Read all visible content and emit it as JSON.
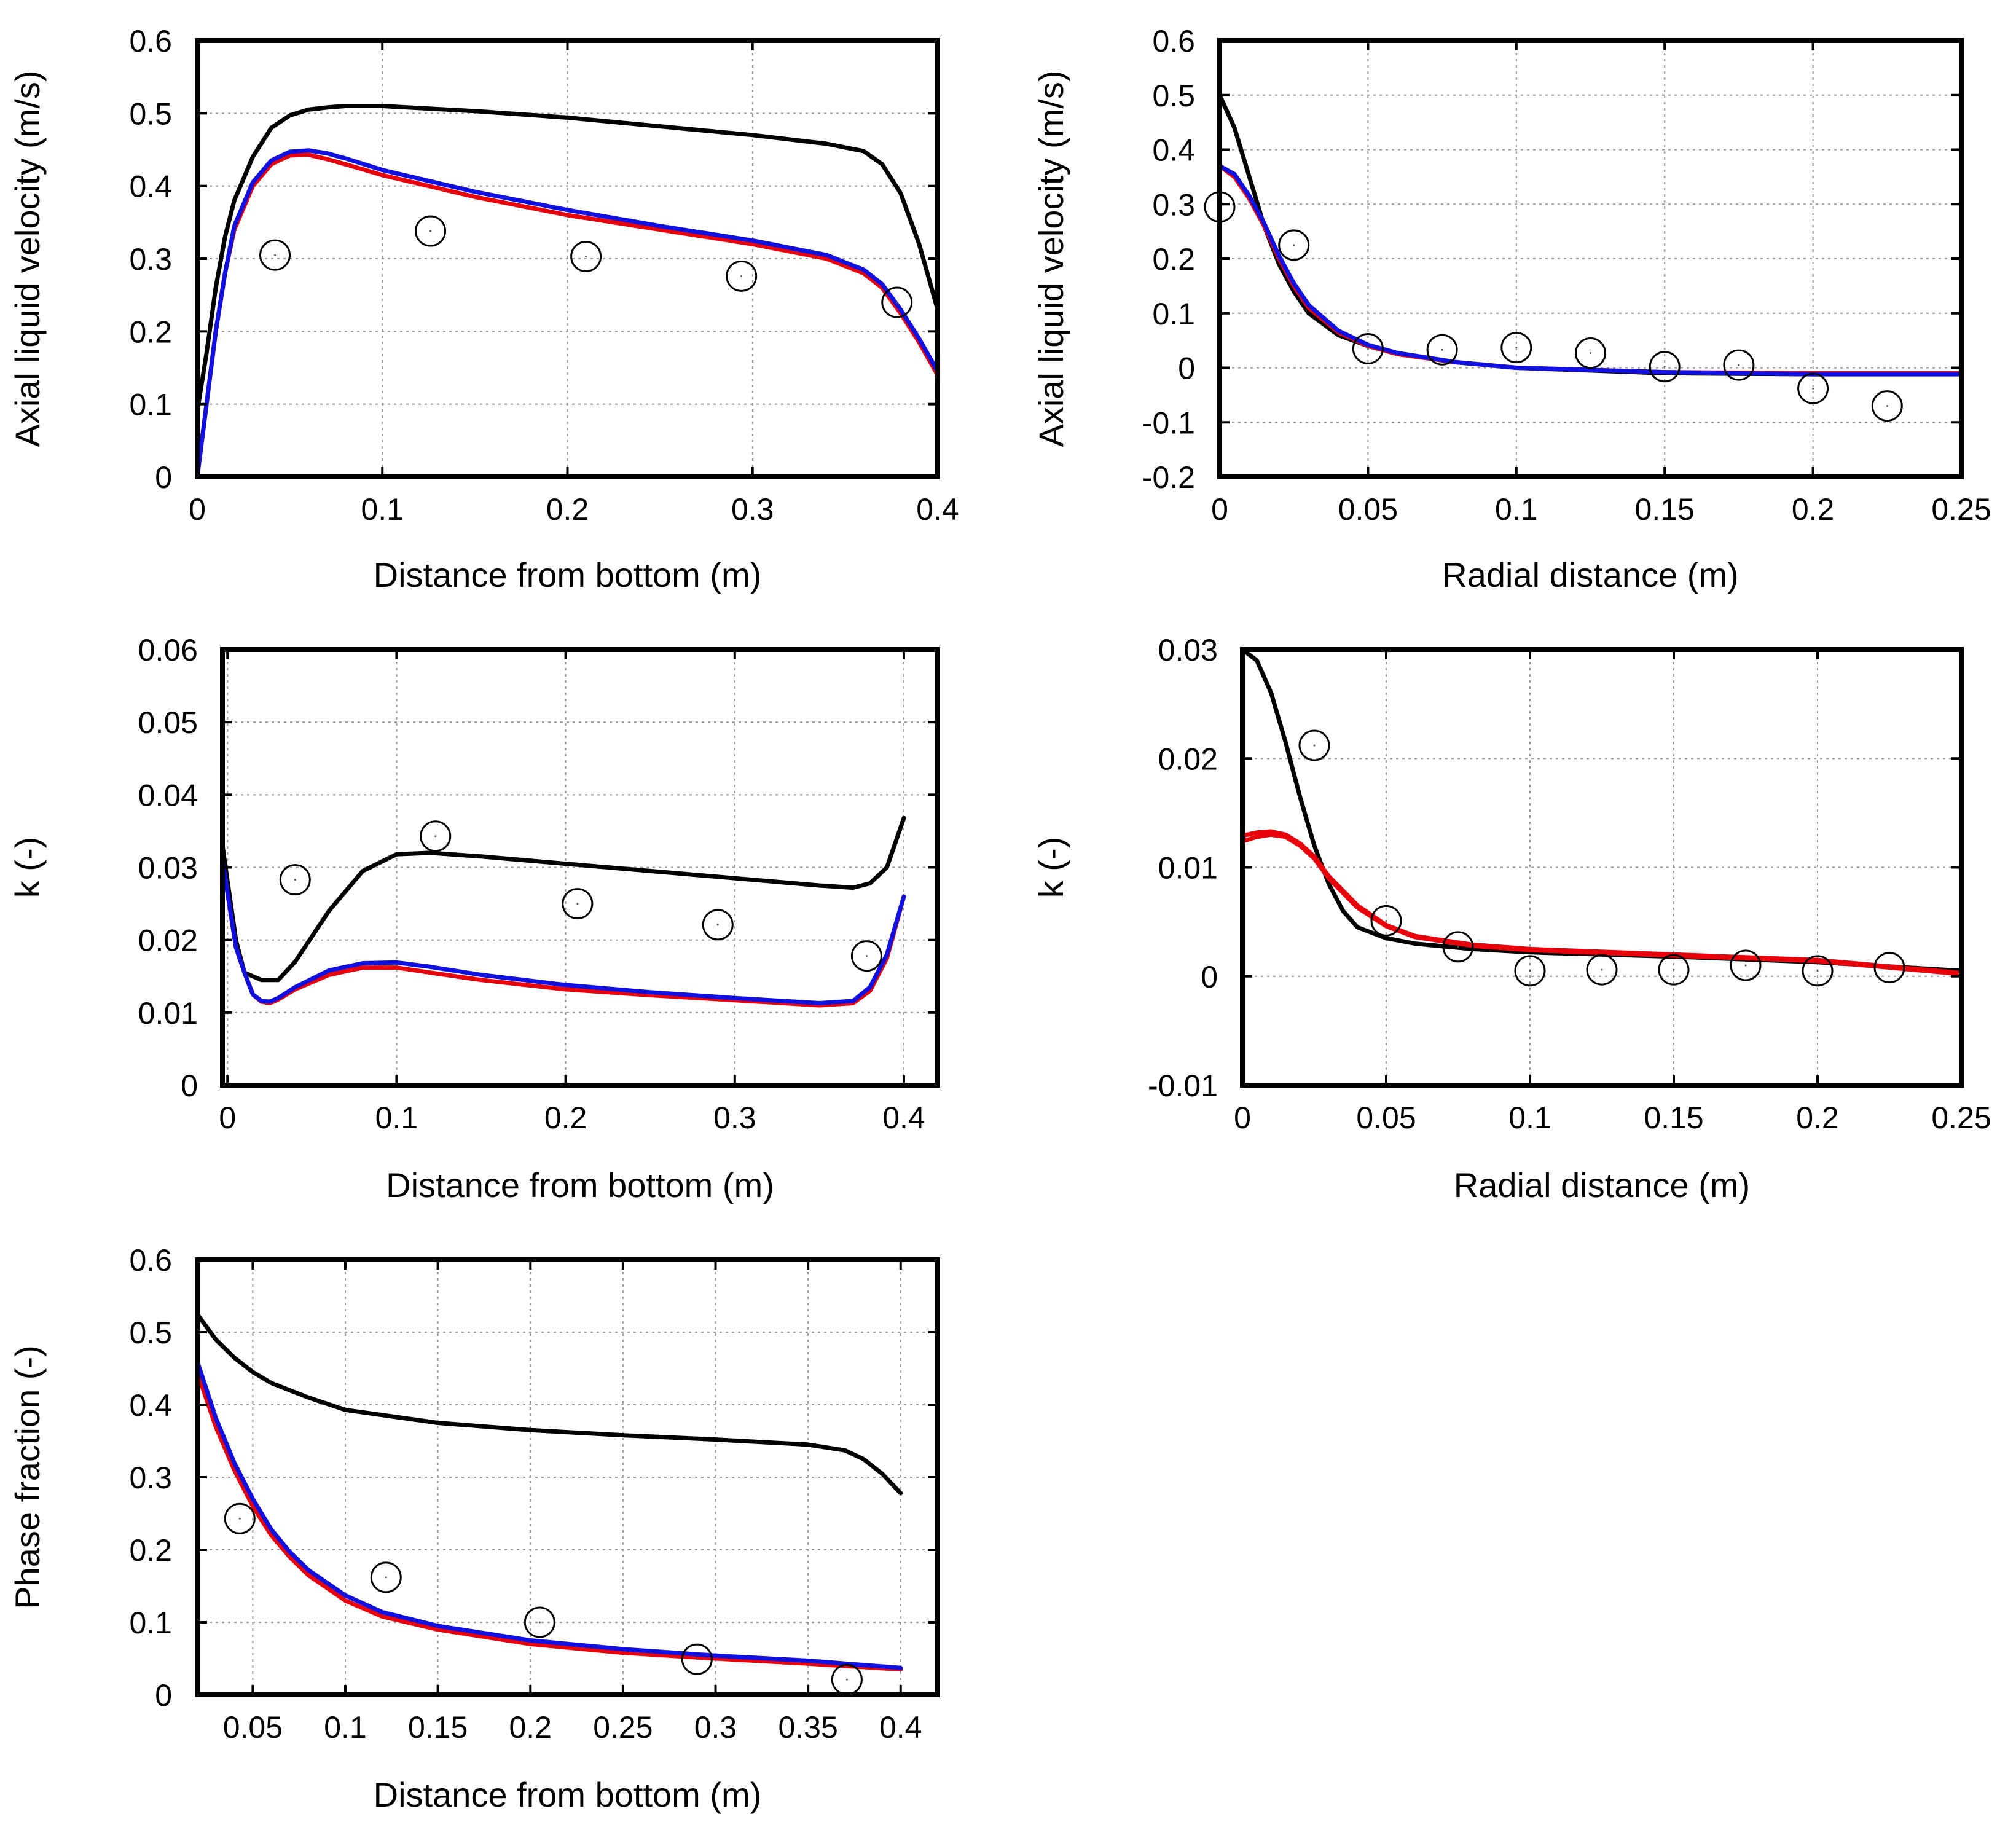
{
  "colors": {
    "black": "#000000",
    "red": "#e8000b",
    "blue": "#1010e0",
    "marker": "#000000"
  },
  "chart_data": [
    {
      "id": "axial-velocity-vs-height",
      "type": "line",
      "xlabel": "Distance from bottom (m)",
      "ylabel": "Axial liquid velocity (m/s)",
      "xlim": [
        0,
        0.4
      ],
      "ylim": [
        0,
        0.6
      ],
      "xticks": [
        0,
        0.1,
        0.2,
        0.3,
        0.4
      ],
      "xtick_labels": [
        "0",
        "0.1",
        "0.2",
        "0.3",
        "0.4"
      ],
      "yticks": [
        0,
        0.1,
        0.2,
        0.3,
        0.4,
        0.5,
        0.6
      ],
      "ytick_labels": [
        "0",
        "0.1",
        "0.2",
        "0.3",
        "0.4",
        "0.5",
        "0.6"
      ],
      "grid": true,
      "series": [
        {
          "name": "black",
          "color": "#000000",
          "x": [
            0,
            0.005,
            0.01,
            0.015,
            0.02,
            0.03,
            0.04,
            0.05,
            0.06,
            0.07,
            0.08,
            0.1,
            0.15,
            0.2,
            0.25,
            0.3,
            0.34,
            0.36,
            0.37,
            0.38,
            0.39,
            0.4
          ],
          "y": [
            0.09,
            0.17,
            0.26,
            0.33,
            0.38,
            0.44,
            0.48,
            0.497,
            0.505,
            0.508,
            0.51,
            0.51,
            0.503,
            0.494,
            0.482,
            0.47,
            0.458,
            0.448,
            0.43,
            0.39,
            0.32,
            0.23
          ]
        },
        {
          "name": "red",
          "color": "#e8000b",
          "x": [
            0,
            0.005,
            0.01,
            0.015,
            0.02,
            0.03,
            0.04,
            0.05,
            0.06,
            0.07,
            0.08,
            0.1,
            0.15,
            0.2,
            0.25,
            0.3,
            0.34,
            0.36,
            0.37,
            0.38,
            0.39,
            0.4
          ],
          "y": [
            0,
            0.1,
            0.2,
            0.28,
            0.34,
            0.4,
            0.43,
            0.442,
            0.443,
            0.437,
            0.43,
            0.415,
            0.385,
            0.36,
            0.34,
            0.32,
            0.3,
            0.28,
            0.26,
            0.225,
            0.185,
            0.14
          ]
        },
        {
          "name": "blue",
          "color": "#1010e0",
          "x": [
            0,
            0.005,
            0.01,
            0.015,
            0.02,
            0.03,
            0.04,
            0.05,
            0.06,
            0.07,
            0.08,
            0.1,
            0.15,
            0.2,
            0.25,
            0.3,
            0.34,
            0.36,
            0.37,
            0.38,
            0.39,
            0.4
          ],
          "y": [
            0,
            0.1,
            0.2,
            0.28,
            0.345,
            0.405,
            0.435,
            0.447,
            0.449,
            0.445,
            0.438,
            0.422,
            0.392,
            0.367,
            0.345,
            0.325,
            0.305,
            0.285,
            0.265,
            0.23,
            0.19,
            0.145
          ]
        }
      ],
      "markers": {
        "x": [
          0.042,
          0.126,
          0.21,
          0.294,
          0.378
        ],
        "y": [
          0.305,
          0.338,
          0.303,
          0.276,
          0.24
        ]
      }
    },
    {
      "id": "axial-velocity-vs-radius",
      "type": "line",
      "xlabel": "Radial distance (m)",
      "ylabel": "Axial liquid velocity (m/s)",
      "xlim": [
        0,
        0.25
      ],
      "ylim": [
        -0.2,
        0.6
      ],
      "xticks": [
        0,
        0.05,
        0.1,
        0.15,
        0.2,
        0.25
      ],
      "xtick_labels": [
        "0",
        "0.05",
        "0.1",
        "0.15",
        "0.2",
        "0.25"
      ],
      "yticks": [
        -0.2,
        -0.1,
        0,
        0.1,
        0.2,
        0.3,
        0.4,
        0.5,
        0.6
      ],
      "ytick_labels": [
        "-0.2",
        "-0.1",
        "0",
        "0.1",
        "0.2",
        "0.3",
        "0.4",
        "0.5",
        "0.6"
      ],
      "grid": true,
      "series": [
        {
          "name": "black",
          "color": "#000000",
          "x": [
            0,
            0.005,
            0.01,
            0.015,
            0.02,
            0.025,
            0.03,
            0.04,
            0.05,
            0.06,
            0.08,
            0.1,
            0.15,
            0.2,
            0.25
          ],
          "y": [
            0.5,
            0.44,
            0.35,
            0.26,
            0.19,
            0.14,
            0.1,
            0.06,
            0.04,
            0.025,
            0.01,
            0.0,
            -0.01,
            -0.012,
            -0.01
          ]
        },
        {
          "name": "red",
          "color": "#e8000b",
          "x": [
            0,
            0.005,
            0.01,
            0.015,
            0.02,
            0.025,
            0.03,
            0.04,
            0.05,
            0.06,
            0.08,
            0.1,
            0.15,
            0.2,
            0.25
          ],
          "y": [
            0.37,
            0.35,
            0.31,
            0.26,
            0.2,
            0.15,
            0.11,
            0.065,
            0.04,
            0.025,
            0.01,
            0.0,
            -0.008,
            -0.01,
            -0.01
          ]
        },
        {
          "name": "blue",
          "color": "#1010e0",
          "x": [
            0,
            0.005,
            0.01,
            0.015,
            0.02,
            0.025,
            0.03,
            0.04,
            0.05,
            0.06,
            0.08,
            0.1,
            0.15,
            0.2,
            0.25
          ],
          "y": [
            0.37,
            0.355,
            0.315,
            0.265,
            0.205,
            0.155,
            0.115,
            0.068,
            0.042,
            0.027,
            0.01,
            0.0,
            -0.008,
            -0.012,
            -0.012
          ]
        }
      ],
      "markers": {
        "x": [
          0,
          0.025,
          0.05,
          0.075,
          0.1,
          0.125,
          0.15,
          0.175,
          0.2,
          0.225
        ],
        "y": [
          0.295,
          0.225,
          0.035,
          0.033,
          0.037,
          0.027,
          0.002,
          0.005,
          -0.038,
          -0.07
        ]
      }
    },
    {
      "id": "k-vs-height",
      "type": "line",
      "xlabel": "Distance from bottom (m)",
      "ylabel": "k (-)",
      "xlim": [
        -0.003,
        0.42
      ],
      "ylim": [
        0,
        0.06
      ],
      "xticks": [
        0,
        0.1,
        0.2,
        0.3,
        0.4
      ],
      "xtick_labels": [
        "0",
        "0.1",
        "0.2",
        "0.3",
        "0.4"
      ],
      "yticks": [
        0,
        0.01,
        0.02,
        0.03,
        0.04,
        0.05,
        0.06
      ],
      "ytick_labels": [
        "0",
        "0.01",
        "0.02",
        "0.03",
        "0.04",
        "0.05",
        "0.06"
      ],
      "grid": true,
      "series": [
        {
          "name": "black",
          "color": "#000000",
          "x": [
            -0.003,
            0.005,
            0.01,
            0.02,
            0.03,
            0.04,
            0.06,
            0.08,
            0.1,
            0.12,
            0.15,
            0.2,
            0.25,
            0.3,
            0.35,
            0.37,
            0.38,
            0.39,
            0.4
          ],
          "y": [
            0.033,
            0.02,
            0.0155,
            0.0145,
            0.0145,
            0.017,
            0.024,
            0.0295,
            0.0318,
            0.032,
            0.0315,
            0.0305,
            0.0295,
            0.0285,
            0.0275,
            0.0272,
            0.0278,
            0.03,
            0.0368
          ]
        },
        {
          "name": "red",
          "color": "#e8000b",
          "x": [
            -0.003,
            0.005,
            0.01,
            0.015,
            0.02,
            0.025,
            0.03,
            0.04,
            0.06,
            0.08,
            0.1,
            0.12,
            0.15,
            0.2,
            0.25,
            0.3,
            0.35,
            0.37,
            0.38,
            0.39,
            0.4
          ],
          "y": [
            0.031,
            0.019,
            0.0155,
            0.0125,
            0.0115,
            0.0113,
            0.0118,
            0.0132,
            0.0152,
            0.0162,
            0.0162,
            0.0155,
            0.0145,
            0.0132,
            0.0124,
            0.0117,
            0.011,
            0.0113,
            0.013,
            0.0175,
            0.026
          ]
        },
        {
          "name": "blue",
          "color": "#1010e0",
          "x": [
            -0.003,
            0.005,
            0.01,
            0.015,
            0.02,
            0.025,
            0.03,
            0.04,
            0.06,
            0.08,
            0.1,
            0.12,
            0.15,
            0.2,
            0.25,
            0.3,
            0.35,
            0.37,
            0.38,
            0.39,
            0.4
          ],
          "y": [
            0.031,
            0.019,
            0.0155,
            0.0125,
            0.0116,
            0.0115,
            0.012,
            0.0135,
            0.0158,
            0.0168,
            0.0169,
            0.0163,
            0.0152,
            0.0138,
            0.0128,
            0.012,
            0.0113,
            0.0116,
            0.0135,
            0.018,
            0.026
          ]
        }
      ],
      "markers": {
        "x": [
          0.04,
          0.123,
          0.207,
          0.29,
          0.378
        ],
        "y": [
          0.0283,
          0.0343,
          0.025,
          0.0221,
          0.0178
        ]
      }
    },
    {
      "id": "k-vs-radius",
      "type": "line",
      "xlabel": "Radial distance (m)",
      "ylabel": "k (-)",
      "xlim": [
        0,
        0.25
      ],
      "ylim": [
        -0.01,
        0.03
      ],
      "xticks": [
        0,
        0.05,
        0.1,
        0.15,
        0.2,
        0.25
      ],
      "xtick_labels": [
        "0",
        "0.05",
        "0.1",
        "0.15",
        "0.2",
        "0.25"
      ],
      "yticks": [
        -0.01,
        0,
        0.01,
        0.02,
        0.03
      ],
      "ytick_labels": [
        "-0.01",
        "0",
        "0.01",
        "0.02",
        "0.03"
      ],
      "grid": true,
      "series": [
        {
          "name": "black",
          "color": "#000000",
          "x": [
            0,
            0.005,
            0.01,
            0.015,
            0.02,
            0.025,
            0.03,
            0.035,
            0.04,
            0.05,
            0.06,
            0.08,
            0.1,
            0.15,
            0.2,
            0.25
          ],
          "y": [
            0.03,
            0.029,
            0.026,
            0.0215,
            0.0165,
            0.012,
            0.0085,
            0.006,
            0.0045,
            0.0035,
            0.003,
            0.0025,
            0.0022,
            0.0018,
            0.0013,
            0.0005
          ]
        },
        {
          "name": "red",
          "color": "#e8000b",
          "x": [
            0,
            0.005,
            0.01,
            0.015,
            0.02,
            0.025,
            0.03,
            0.04,
            0.05,
            0.06,
            0.08,
            0.1,
            0.15,
            0.2,
            0.25
          ],
          "y": [
            0.0129,
            0.0132,
            0.0133,
            0.013,
            0.0122,
            0.011,
            0.0092,
            0.0065,
            0.0047,
            0.0037,
            0.0029,
            0.0025,
            0.002,
            0.0015,
            0.0003
          ]
        },
        {
          "name": "red-2",
          "color": "#e8000b",
          "x": [
            0,
            0.005,
            0.01,
            0.015,
            0.02,
            0.025,
            0.03,
            0.04,
            0.05,
            0.06,
            0.08,
            0.1,
            0.15,
            0.2,
            0.25
          ],
          "y": [
            0.0124,
            0.0128,
            0.013,
            0.0128,
            0.012,
            0.0108,
            0.009,
            0.0063,
            0.0046,
            0.0036,
            0.0028,
            0.0024,
            0.0019,
            0.0014,
            0.0002
          ]
        }
      ],
      "markers": {
        "x": [
          0.025,
          0.05,
          0.075,
          0.1,
          0.125,
          0.15,
          0.175,
          0.2,
          0.225
        ],
        "y": [
          0.0212,
          0.0051,
          0.0027,
          0.0005,
          0.0006,
          0.0006,
          0.001,
          0.0005,
          0.0008
        ]
      }
    },
    {
      "id": "phase-fraction-vs-height",
      "type": "line",
      "xlabel": "Distance from bottom (m)",
      "ylabel": "Phase fraction (-)",
      "xlim": [
        0.02,
        0.42
      ],
      "ylim": [
        0,
        0.6
      ],
      "xticks": [
        0.05,
        0.1,
        0.15,
        0.2,
        0.25,
        0.3,
        0.35,
        0.4
      ],
      "xtick_labels": [
        "0.05",
        "0.1",
        "0.15",
        "0.2",
        "0.25",
        "0.3",
        "0.35",
        "0.4"
      ],
      "yticks": [
        0,
        0.1,
        0.2,
        0.3,
        0.4,
        0.5,
        0.6
      ],
      "ytick_labels": [
        "0",
        "0.1",
        "0.2",
        "0.3",
        "0.4",
        "0.5",
        "0.6"
      ],
      "grid": true,
      "series": [
        {
          "name": "black",
          "color": "#000000",
          "x": [
            0.02,
            0.03,
            0.04,
            0.05,
            0.06,
            0.08,
            0.1,
            0.15,
            0.2,
            0.25,
            0.3,
            0.35,
            0.37,
            0.38,
            0.39,
            0.4
          ],
          "y": [
            0.525,
            0.49,
            0.465,
            0.445,
            0.43,
            0.41,
            0.393,
            0.375,
            0.365,
            0.358,
            0.352,
            0.345,
            0.337,
            0.325,
            0.305,
            0.278
          ]
        },
        {
          "name": "red",
          "color": "#e8000b",
          "x": [
            0.02,
            0.03,
            0.04,
            0.05,
            0.06,
            0.07,
            0.08,
            0.1,
            0.12,
            0.15,
            0.2,
            0.25,
            0.3,
            0.35,
            0.4
          ],
          "y": [
            0.445,
            0.37,
            0.31,
            0.26,
            0.22,
            0.19,
            0.165,
            0.13,
            0.108,
            0.09,
            0.07,
            0.058,
            0.05,
            0.043,
            0.035
          ]
        },
        {
          "name": "blue",
          "color": "#1010e0",
          "x": [
            0.02,
            0.03,
            0.04,
            0.05,
            0.06,
            0.07,
            0.08,
            0.1,
            0.12,
            0.15,
            0.2,
            0.25,
            0.3,
            0.35,
            0.4
          ],
          "y": [
            0.46,
            0.382,
            0.32,
            0.27,
            0.228,
            0.197,
            0.172,
            0.137,
            0.114,
            0.095,
            0.075,
            0.063,
            0.054,
            0.047,
            0.037
          ]
        }
      ],
      "markers": {
        "x": [
          0.043,
          0.122,
          0.205,
          0.29,
          0.371
        ],
        "y": [
          0.243,
          0.162,
          0.1,
          0.049,
          0.021
        ]
      }
    }
  ]
}
